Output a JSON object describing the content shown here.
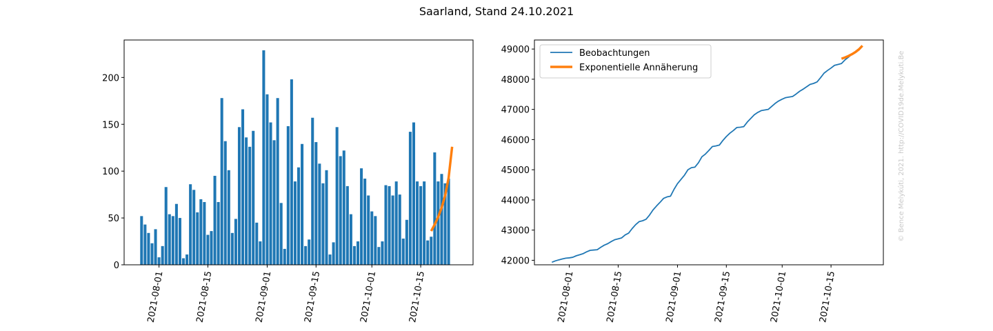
{
  "figure": {
    "title": "Saarland, Stand 24.10.2021",
    "copyright": "© Bence Melykúti, 2021. http://COVID19de.Melykuti.Be"
  },
  "colors": {
    "bar": "#1f77b4",
    "line": "#1f77b4",
    "fit": "#ff7f0e",
    "axis": "#000000"
  },
  "chart_data": [
    {
      "type": "bar",
      "title": "",
      "xlabel": "",
      "ylabel": "",
      "x_start_date": "2021-07-27",
      "x_ticks": [
        "2021-08-01",
        "2021-08-15",
        "2021-09-01",
        "2021-09-15",
        "2021-10-01",
        "2021-10-15"
      ],
      "xlim": [
        "2021-07-22",
        "2021-10-30"
      ],
      "ylim": [
        0,
        240
      ],
      "y_ticks": [
        0,
        50,
        100,
        150,
        200
      ],
      "grid": false,
      "series": [
        {
          "type": "bar",
          "values": [
            52,
            43,
            34,
            23,
            38,
            8,
            20,
            83,
            54,
            52,
            65,
            50,
            7,
            11,
            86,
            80,
            56,
            70,
            67,
            32,
            36,
            95,
            67,
            178,
            132,
            101,
            34,
            49,
            147,
            166,
            136,
            126,
            143,
            45,
            25,
            229,
            182,
            152,
            133,
            178,
            66,
            17,
            148,
            198,
            89,
            104,
            129,
            20,
            27,
            157,
            131,
            108,
            87,
            101,
            11,
            24,
            147,
            116,
            122,
            84,
            54,
            20,
            25,
            103,
            92,
            74,
            57,
            52,
            19,
            25,
            85,
            84,
            74,
            89,
            75,
            28,
            48,
            142,
            152,
            89,
            84,
            89,
            26,
            30,
            120,
            89,
            97,
            87,
            92
          ]
        },
        {
          "name": "Exponentielle Annäherung",
          "type": "line",
          "x": [
            "2021-10-18",
            "2021-10-19",
            "2021-10-20",
            "2021-10-21",
            "2021-10-22",
            "2021-10-23",
            "2021-10-24"
          ],
          "values": [
            36,
            43,
            51,
            61,
            74,
            93,
            126
          ]
        }
      ]
    },
    {
      "type": "line",
      "title": "",
      "xlabel": "",
      "ylabel": "",
      "x_ticks": [
        "2021-08-01",
        "2021-08-15",
        "2021-09-01",
        "2021-09-15",
        "2021-10-01",
        "2021-10-15"
      ],
      "xlim": [
        "2021-07-22",
        "2021-10-30"
      ],
      "ylim": [
        41850,
        49300
      ],
      "y_ticks": [
        42000,
        43000,
        44000,
        45000,
        46000,
        47000,
        48000,
        49000
      ],
      "grid": false,
      "legend_position": "upper-left",
      "series": [
        {
          "name": "Beobachtungen",
          "x_start_date": "2021-07-27",
          "values": [
            41934,
            41980,
            42014,
            42045,
            42070,
            42080,
            42100,
            42150,
            42184,
            42222,
            42282,
            42330,
            42340,
            42350,
            42430,
            42500,
            42550,
            42620,
            42680,
            42710,
            42742,
            42840,
            42900,
            43050,
            43180,
            43280,
            43310,
            43360,
            43500,
            43670,
            43800,
            43920,
            44050,
            44100,
            44125,
            44350,
            44540,
            44680,
            44820,
            45000,
            45070,
            45087,
            45230,
            45430,
            45520,
            45640,
            45770,
            45790,
            45817,
            45970,
            46100,
            46210,
            46300,
            46400,
            46410,
            46430,
            46580,
            46700,
            46820,
            46900,
            46960,
            46980,
            47000,
            47100,
            47200,
            47280,
            47340,
            47390,
            47410,
            47430,
            47510,
            47600,
            47670,
            47750,
            47830,
            47860,
            47910,
            48050,
            48200,
            48290,
            48370,
            48460,
            48490,
            48520,
            48640,
            48730,
            48830,
            48920,
            49010
          ]
        },
        {
          "name": "Exponentielle Annäherung",
          "x": [
            "2021-10-18",
            "2021-10-19",
            "2021-10-20",
            "2021-10-21",
            "2021-10-22",
            "2021-10-23",
            "2021-10-24"
          ],
          "values": [
            48680,
            48720,
            48770,
            48830,
            48900,
            48990,
            49110
          ]
        }
      ]
    }
  ]
}
